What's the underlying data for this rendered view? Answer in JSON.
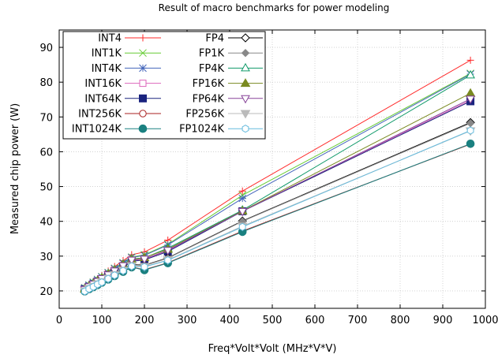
{
  "chart_data": {
    "type": "line",
    "title": "Result of macro benchmarks for power modeling",
    "xlabel": "Freq*Volt*Volt (MHz*V*V)",
    "ylabel": "Measured chip power (W)",
    "xlim": [
      0,
      1000
    ],
    "ylim": [
      15,
      95
    ],
    "xticks": [
      "0",
      "100",
      "200",
      "300",
      "400",
      "500",
      "600",
      "700",
      "800",
      "900",
      "1000"
    ],
    "yticks": [
      "20",
      "30",
      "40",
      "50",
      "60",
      "70",
      "80",
      "90"
    ],
    "grid": true,
    "legend_position": "top-left",
    "x": [
      60,
      70,
      80,
      90,
      100,
      115,
      130,
      150,
      170,
      200,
      255,
      430,
      965
    ],
    "series": [
      {
        "name": "INT4",
        "color": "#ff2a2a",
        "marker": "plus",
        "values": [
          21.0,
          21.9,
          22.7,
          23.5,
          24.4,
          25.7,
          27.0,
          28.7,
          30.4,
          31.2,
          34.6,
          48.7,
          86.3
        ]
      },
      {
        "name": "INT1K",
        "color": "#66cc33",
        "marker": "cross",
        "values": [
          20.9,
          21.7,
          22.5,
          23.3,
          24.1,
          25.3,
          26.5,
          28.1,
          29.7,
          30.4,
          33.4,
          47.5,
          82.5
        ]
      },
      {
        "name": "INT4K",
        "color": "#4466bb",
        "marker": "star",
        "values": [
          20.8,
          21.6,
          22.4,
          23.2,
          24.0,
          25.2,
          26.4,
          28.0,
          29.6,
          30.2,
          33.2,
          46.6,
          82.3
        ]
      },
      {
        "name": "INT16K",
        "color": "#dd66bb",
        "marker": "square-open",
        "values": [
          20.5,
          21.2,
          22.0,
          22.7,
          23.5,
          24.6,
          25.7,
          27.2,
          28.7,
          29.0,
          31.5,
          43.0,
          74.8
        ]
      },
      {
        "name": "INT64K",
        "color": "#1a237e",
        "marker": "square",
        "values": [
          20.5,
          21.2,
          21.9,
          22.7,
          23.4,
          24.5,
          25.6,
          27.1,
          28.5,
          28.9,
          31.3,
          42.9,
          74.5
        ]
      },
      {
        "name": "INT256K",
        "color": "#aa2222",
        "marker": "circle-open",
        "values": [
          19.9,
          20.5,
          21.2,
          21.8,
          22.5,
          23.4,
          24.4,
          25.6,
          26.9,
          26.1,
          28.1,
          37.2,
          62.2
        ]
      },
      {
        "name": "INT1024K",
        "color": "#1a8080",
        "marker": "circle",
        "values": [
          19.9,
          20.5,
          21.1,
          21.7,
          22.4,
          23.3,
          24.3,
          25.5,
          26.8,
          26.0,
          28.0,
          37.0,
          62.3
        ]
      },
      {
        "name": "FP4",
        "color": "#000000",
        "marker": "diamond-open",
        "values": [
          20.2,
          20.9,
          21.5,
          22.2,
          22.9,
          23.9,
          24.9,
          26.3,
          27.6,
          27.4,
          29.5,
          40.1,
          68.4
        ]
      },
      {
        "name": "FP1K",
        "color": "#888888",
        "marker": "diamond",
        "values": [
          20.2,
          20.8,
          21.5,
          22.1,
          22.8,
          23.8,
          24.8,
          26.2,
          27.5,
          27.3,
          29.4,
          40.0,
          68.2
        ]
      },
      {
        "name": "FP4K",
        "color": "#109a6a",
        "marker": "triangle-open",
        "values": [
          20.7,
          21.5,
          22.3,
          23.0,
          23.8,
          25.0,
          26.1,
          27.7,
          29.2,
          29.5,
          32.3,
          43.2,
          82.0
        ]
      },
      {
        "name": "FP16K",
        "color": "#7a8a20",
        "marker": "triangle",
        "values": [
          20.6,
          21.4,
          22.1,
          22.9,
          23.7,
          24.8,
          25.9,
          27.5,
          29.0,
          29.6,
          32.0,
          43.0,
          76.8
        ]
      },
      {
        "name": "FP64K",
        "color": "#884499",
        "marker": "triangle-down-open",
        "values": [
          20.5,
          21.3,
          22.0,
          22.8,
          23.6,
          24.7,
          25.8,
          27.3,
          28.9,
          29.2,
          31.7,
          42.9,
          75.2
        ]
      },
      {
        "name": "FP256K",
        "color": "#bbbbbb",
        "marker": "triangle-down",
        "values": [
          20.0,
          20.7,
          21.3,
          22.0,
          22.6,
          23.6,
          24.6,
          25.9,
          27.2,
          27.0,
          28.9,
          38.6,
          66.0
        ]
      },
      {
        "name": "FP1024K",
        "color": "#66bbdd",
        "marker": "hexagon-open",
        "values": [
          19.9,
          20.6,
          21.2,
          21.9,
          22.5,
          23.5,
          24.5,
          25.8,
          27.1,
          26.9,
          28.8,
          38.4,
          66.1
        ]
      }
    ]
  }
}
